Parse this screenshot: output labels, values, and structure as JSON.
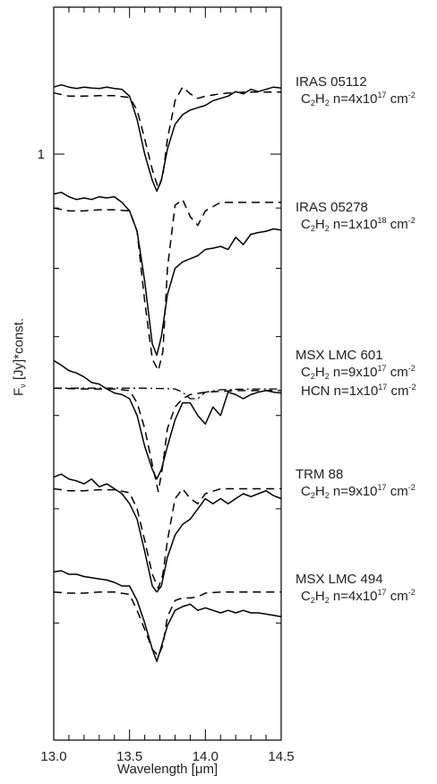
{
  "chart_data": {
    "type": "line",
    "xlabel": "Wavelength [μm]",
    "ylabel": "F_ν [Jy]*const.",
    "xlim": [
      13.0,
      14.5
    ],
    "x_ticks": [
      13.0,
      13.5,
      14.0,
      14.5
    ],
    "x_tick_labels": [
      "13.0",
      "13.5",
      "14.0",
      "14.5"
    ],
    "y_tick_labels": [
      {
        "value": 1.0,
        "label": "1"
      }
    ],
    "y_scale": "log",
    "grid": false,
    "spectra": [
      {
        "label": "IRAS 05112",
        "model_text": "C₂H₂ n=4x10¹⁷ cm⁻²",
        "observed": [
          [
            13.0,
            1.14
          ],
          [
            13.05,
            1.145
          ],
          [
            13.1,
            1.14
          ],
          [
            13.15,
            1.137
          ],
          [
            13.2,
            1.14
          ],
          [
            13.25,
            1.138
          ],
          [
            13.3,
            1.137
          ],
          [
            13.35,
            1.14
          ],
          [
            13.4,
            1.137
          ],
          [
            13.45,
            1.135
          ],
          [
            13.5,
            1.12
          ],
          [
            13.55,
            1.07
          ],
          [
            13.6,
            1.0
          ],
          [
            13.65,
            0.95
          ],
          [
            13.68,
            0.93
          ],
          [
            13.71,
            0.95
          ],
          [
            13.75,
            1.01
          ],
          [
            13.8,
            1.06
          ],
          [
            13.85,
            1.08
          ],
          [
            13.9,
            1.09
          ],
          [
            13.95,
            1.095
          ],
          [
            14.0,
            1.1
          ],
          [
            14.05,
            1.11
          ],
          [
            14.1,
            1.115
          ],
          [
            14.15,
            1.12
          ],
          [
            14.2,
            1.13
          ],
          [
            14.25,
            1.125
          ],
          [
            14.3,
            1.135
          ],
          [
            14.35,
            1.13
          ],
          [
            14.4,
            1.135
          ],
          [
            14.45,
            1.14
          ],
          [
            14.5,
            1.138
          ]
        ],
        "model": [
          [
            13.0,
            1.127
          ],
          [
            13.1,
            1.12
          ],
          [
            13.2,
            1.12
          ],
          [
            13.3,
            1.121
          ],
          [
            13.4,
            1.121
          ],
          [
            13.5,
            1.117
          ],
          [
            13.55,
            1.09
          ],
          [
            13.6,
            1.03
          ],
          [
            13.65,
            0.97
          ],
          [
            13.69,
            0.935
          ],
          [
            13.72,
            0.96
          ],
          [
            13.75,
            1.03
          ],
          [
            13.8,
            1.11
          ],
          [
            13.85,
            1.14
          ],
          [
            13.9,
            1.125
          ],
          [
            13.95,
            1.115
          ],
          [
            14.0,
            1.12
          ],
          [
            14.1,
            1.125
          ],
          [
            14.2,
            1.128
          ],
          [
            14.3,
            1.129
          ],
          [
            14.4,
            1.129
          ],
          [
            14.5,
            1.129
          ]
        ]
      },
      {
        "label": "IRAS 05278",
        "model_text": "C₂H₂ n=1x10¹⁸ cm⁻²",
        "observed": [
          [
            13.0,
            0.925
          ],
          [
            13.05,
            0.928
          ],
          [
            13.1,
            0.92
          ],
          [
            13.15,
            0.915
          ],
          [
            13.2,
            0.918
          ],
          [
            13.25,
            0.915
          ],
          [
            13.3,
            0.92
          ],
          [
            13.35,
            0.918
          ],
          [
            13.4,
            0.92
          ],
          [
            13.45,
            0.91
          ],
          [
            13.5,
            0.895
          ],
          [
            13.55,
            0.86
          ],
          [
            13.6,
            0.78
          ],
          [
            13.65,
            0.69
          ],
          [
            13.68,
            0.675
          ],
          [
            13.71,
            0.7
          ],
          [
            13.75,
            0.76
          ],
          [
            13.8,
            0.8
          ],
          [
            13.85,
            0.81
          ],
          [
            13.9,
            0.815
          ],
          [
            13.95,
            0.82
          ],
          [
            14.0,
            0.83
          ],
          [
            14.05,
            0.832
          ],
          [
            14.1,
            0.835
          ],
          [
            14.15,
            0.83
          ],
          [
            14.2,
            0.85
          ],
          [
            14.25,
            0.838
          ],
          [
            14.3,
            0.855
          ],
          [
            14.35,
            0.858
          ],
          [
            14.4,
            0.86
          ],
          [
            14.45,
            0.864
          ],
          [
            14.5,
            0.862
          ]
        ],
        "model": [
          [
            13.0,
            0.9
          ],
          [
            13.1,
            0.895
          ],
          [
            13.2,
            0.895
          ],
          [
            13.3,
            0.897
          ],
          [
            13.4,
            0.897
          ],
          [
            13.5,
            0.895
          ],
          [
            13.55,
            0.86
          ],
          [
            13.6,
            0.75
          ],
          [
            13.65,
            0.67
          ],
          [
            13.69,
            0.655
          ],
          [
            13.72,
            0.68
          ],
          [
            13.75,
            0.8
          ],
          [
            13.8,
            0.905
          ],
          [
            13.85,
            0.915
          ],
          [
            13.9,
            0.885
          ],
          [
            13.95,
            0.87
          ],
          [
            14.0,
            0.895
          ],
          [
            14.1,
            0.91
          ],
          [
            14.2,
            0.91
          ],
          [
            14.3,
            0.91
          ],
          [
            14.4,
            0.91
          ],
          [
            14.5,
            0.91
          ]
        ]
      },
      {
        "label": "MSX LMC 601",
        "model_text": "C₂H₂ n=9x10¹⁷ cm⁻²",
        "model2_text": "HCN n=1x10¹⁷ cm⁻²",
        "observed": [
          [
            13.0,
            0.668
          ],
          [
            13.05,
            0.662
          ],
          [
            13.1,
            0.655
          ],
          [
            13.15,
            0.652
          ],
          [
            13.2,
            0.647
          ],
          [
            13.25,
            0.64
          ],
          [
            13.3,
            0.638
          ],
          [
            13.35,
            0.632
          ],
          [
            13.4,
            0.627
          ],
          [
            13.45,
            0.625
          ],
          [
            13.5,
            0.62
          ],
          [
            13.55,
            0.6
          ],
          [
            13.6,
            0.565
          ],
          [
            13.65,
            0.54
          ],
          [
            13.68,
            0.53
          ],
          [
            13.71,
            0.54
          ],
          [
            13.75,
            0.565
          ],
          [
            13.8,
            0.595
          ],
          [
            13.85,
            0.615
          ],
          [
            13.9,
            0.615
          ],
          [
            13.95,
            0.6
          ],
          [
            14.0,
            0.59
          ],
          [
            14.05,
            0.61
          ],
          [
            14.1,
            0.6
          ],
          [
            14.15,
            0.628
          ],
          [
            14.2,
            0.625
          ],
          [
            14.25,
            0.62
          ],
          [
            14.3,
            0.625
          ],
          [
            14.35,
            0.628
          ],
          [
            14.4,
            0.63
          ],
          [
            14.45,
            0.628
          ],
          [
            14.5,
            0.627
          ]
        ],
        "model": [
          [
            13.0,
            0.633
          ],
          [
            13.2,
            0.632
          ],
          [
            13.4,
            0.632
          ],
          [
            13.5,
            0.63
          ],
          [
            13.55,
            0.615
          ],
          [
            13.6,
            0.585
          ],
          [
            13.65,
            0.545
          ],
          [
            13.69,
            0.517
          ],
          [
            13.72,
            0.545
          ],
          [
            13.75,
            0.585
          ],
          [
            13.8,
            0.61
          ],
          [
            13.85,
            0.62
          ],
          [
            13.9,
            0.625
          ],
          [
            14.0,
            0.628
          ],
          [
            14.2,
            0.63
          ],
          [
            14.4,
            0.63
          ],
          [
            14.5,
            0.63
          ]
        ],
        "model2": [
          [
            13.0,
            0.633
          ],
          [
            13.2,
            0.633
          ],
          [
            13.4,
            0.633
          ],
          [
            13.6,
            0.633
          ],
          [
            13.8,
            0.632
          ],
          [
            13.85,
            0.628
          ],
          [
            13.9,
            0.62
          ],
          [
            13.95,
            0.62
          ],
          [
            14.0,
            0.628
          ],
          [
            14.1,
            0.631
          ],
          [
            14.3,
            0.632
          ],
          [
            14.5,
            0.632
          ]
        ]
      },
      {
        "label": "TRM 88",
        "model_text": "C₂H₂ n=9x10¹⁷ cm⁻²",
        "observed": [
          [
            13.0,
            0.532
          ],
          [
            13.05,
            0.535
          ],
          [
            13.1,
            0.53
          ],
          [
            13.15,
            0.528
          ],
          [
            13.2,
            0.525
          ],
          [
            13.25,
            0.53
          ],
          [
            13.3,
            0.522
          ],
          [
            13.35,
            0.525
          ],
          [
            13.4,
            0.52
          ],
          [
            13.45,
            0.515
          ],
          [
            13.5,
            0.505
          ],
          [
            13.55,
            0.49
          ],
          [
            13.6,
            0.46
          ],
          [
            13.65,
            0.43
          ],
          [
            13.68,
            0.425
          ],
          [
            13.71,
            0.43
          ],
          [
            13.75,
            0.455
          ],
          [
            13.8,
            0.475
          ],
          [
            13.85,
            0.485
          ],
          [
            13.9,
            0.49
          ],
          [
            13.95,
            0.5
          ],
          [
            14.0,
            0.51
          ],
          [
            14.05,
            0.505
          ],
          [
            14.1,
            0.51
          ],
          [
            14.15,
            0.505
          ],
          [
            14.2,
            0.51
          ],
          [
            14.25,
            0.515
          ],
          [
            14.3,
            0.512
          ],
          [
            14.35,
            0.515
          ],
          [
            14.4,
            0.518
          ],
          [
            14.45,
            0.513
          ],
          [
            14.5,
            0.51
          ]
        ],
        "model": [
          [
            13.0,
            0.52
          ],
          [
            13.1,
            0.518
          ],
          [
            13.2,
            0.518
          ],
          [
            13.3,
            0.519
          ],
          [
            13.4,
            0.519
          ],
          [
            13.5,
            0.516
          ],
          [
            13.55,
            0.5
          ],
          [
            13.6,
            0.47
          ],
          [
            13.65,
            0.44
          ],
          [
            13.69,
            0.428
          ],
          [
            13.72,
            0.44
          ],
          [
            13.75,
            0.47
          ],
          [
            13.8,
            0.51
          ],
          [
            13.85,
            0.52
          ],
          [
            13.9,
            0.51
          ],
          [
            13.95,
            0.505
          ],
          [
            14.0,
            0.515
          ],
          [
            14.1,
            0.52
          ],
          [
            14.2,
            0.52
          ],
          [
            14.3,
            0.52
          ],
          [
            14.4,
            0.52
          ],
          [
            14.5,
            0.52
          ]
        ]
      },
      {
        "label": "MSX LMC 494",
        "model_text": "C₂H₂ n=4x10¹⁷ cm⁻²",
        "observed": [
          [
            13.0,
            0.442
          ],
          [
            13.05,
            0.443
          ],
          [
            13.1,
            0.44
          ],
          [
            13.15,
            0.44
          ],
          [
            13.2,
            0.438
          ],
          [
            13.25,
            0.437
          ],
          [
            13.3,
            0.436
          ],
          [
            13.35,
            0.435
          ],
          [
            13.4,
            0.433
          ],
          [
            13.45,
            0.43
          ],
          [
            13.5,
            0.43
          ],
          [
            13.55,
            0.418
          ],
          [
            13.6,
            0.4
          ],
          [
            13.65,
            0.38
          ],
          [
            13.68,
            0.371
          ],
          [
            13.71,
            0.382
          ],
          [
            13.75,
            0.398
          ],
          [
            13.8,
            0.41
          ],
          [
            13.85,
            0.413
          ],
          [
            13.9,
            0.415
          ],
          [
            13.95,
            0.41
          ],
          [
            14.0,
            0.412
          ],
          [
            14.05,
            0.41
          ],
          [
            14.1,
            0.408
          ],
          [
            14.15,
            0.41
          ],
          [
            14.2,
            0.408
          ],
          [
            14.25,
            0.41
          ],
          [
            14.3,
            0.408
          ],
          [
            14.35,
            0.408
          ],
          [
            14.4,
            0.407
          ],
          [
            14.45,
            0.406
          ],
          [
            14.5,
            0.405
          ]
        ],
        "model": [
          [
            13.0,
            0.425
          ],
          [
            13.1,
            0.424
          ],
          [
            13.2,
            0.424
          ],
          [
            13.3,
            0.425
          ],
          [
            13.4,
            0.425
          ],
          [
            13.5,
            0.423
          ],
          [
            13.55,
            0.41
          ],
          [
            13.6,
            0.395
          ],
          [
            13.65,
            0.38
          ],
          [
            13.69,
            0.375
          ],
          [
            13.72,
            0.383
          ],
          [
            13.75,
            0.405
          ],
          [
            13.8,
            0.418
          ],
          [
            13.85,
            0.42
          ],
          [
            13.9,
            0.42
          ],
          [
            13.95,
            0.421
          ],
          [
            14.0,
            0.424
          ],
          [
            14.1,
            0.425
          ],
          [
            14.2,
            0.425
          ],
          [
            14.3,
            0.425
          ],
          [
            14.4,
            0.425
          ],
          [
            14.5,
            0.425
          ]
        ]
      }
    ]
  }
}
